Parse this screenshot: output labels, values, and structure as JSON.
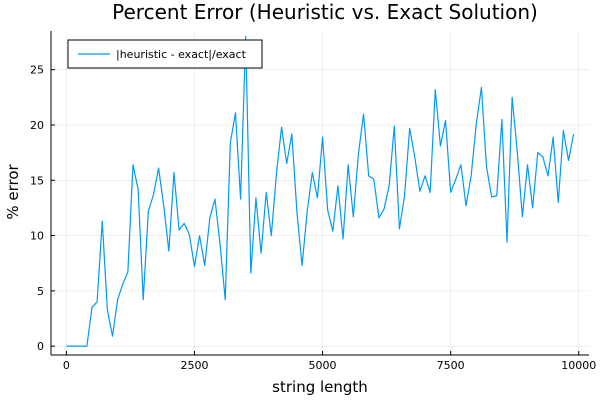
{
  "chart_data": {
    "type": "line",
    "title": "Percent Error (Heuristic vs. Exact Solution)",
    "xlabel": "string length",
    "ylabel": "% error",
    "xlim": [
      -300,
      10200
    ],
    "ylim": [
      -0.8,
      28.5
    ],
    "xticks": [
      0,
      2500,
      5000,
      7500,
      10000
    ],
    "xtick_labels": [
      "0",
      "2500",
      "5000",
      "7500",
      "10000"
    ],
    "yticks": [
      0,
      5,
      10,
      15,
      20,
      25
    ],
    "ytick_labels": [
      "0",
      "5",
      "10",
      "15",
      "20",
      "25"
    ],
    "grid": true,
    "legend_position": "top-left",
    "series_color": "#009af9",
    "series": [
      {
        "name": "|heuristic - exact|/exact",
        "x": [
          0,
          100,
          200,
          300,
          400,
          500,
          600,
          700,
          800,
          900,
          1000,
          1100,
          1200,
          1300,
          1400,
          1500,
          1600,
          1700,
          1800,
          1900,
          2000,
          2100,
          2200,
          2300,
          2400,
          2500,
          2600,
          2700,
          2800,
          2900,
          3000,
          3100,
          3200,
          3300,
          3400,
          3500,
          3600,
          3700,
          3800,
          3900,
          4000,
          4100,
          4200,
          4300,
          4400,
          4500,
          4600,
          4700,
          4800,
          4900,
          5000,
          5100,
          5200,
          5300,
          5400,
          5500,
          5600,
          5700,
          5800,
          5900,
          6000,
          6100,
          6200,
          6300,
          6400,
          6500,
          6600,
          6700,
          6800,
          6900,
          7000,
          7100,
          7200,
          7300,
          7400,
          7500,
          7600,
          7700,
          7800,
          7900,
          8000,
          8100,
          8200,
          8300,
          8400,
          8500,
          8600,
          8700,
          8800,
          8900,
          9000,
          9100,
          9200,
          9300,
          9400,
          9500,
          9600,
          9700,
          9800,
          9900
        ],
        "y": [
          0,
          0,
          0,
          0,
          0,
          3.5,
          4,
          11.3,
          3.3,
          0.9,
          4.2,
          5.6,
          6.7,
          16.4,
          14.2,
          4.2,
          12.2,
          13.7,
          16.1,
          12.7,
          8.6,
          15.7,
          10.5,
          11.1,
          10.1,
          7.2,
          10,
          7.3,
          11.6,
          13.3,
          9.2,
          4.2,
          18.4,
          21.1,
          13.3,
          28,
          6.6,
          13.4,
          8.4,
          13.9,
          10,
          15.6,
          19.8,
          16.5,
          19.2,
          12.1,
          7.3,
          12.2,
          15.7,
          13.4,
          18.9,
          12.3,
          10.4,
          14.5,
          9.7,
          16.4,
          11.7,
          17.4,
          21,
          15.4,
          15.1,
          11.6,
          12.4,
          14.5,
          19.9,
          10.6,
          13.6,
          19.7,
          17.1,
          14,
          15.4,
          13.9,
          23.2,
          18.1,
          20.4,
          13.9,
          15.1,
          16.4,
          12.7,
          15.4,
          20.1,
          23.4,
          16.2,
          13.5,
          13.6,
          20.5,
          9.4,
          22.5,
          17.6,
          11.7,
          16.4,
          12.5,
          17.5,
          17.1,
          15.4,
          18.9,
          13,
          19.5,
          16.8,
          19.2
        ]
      }
    ]
  }
}
